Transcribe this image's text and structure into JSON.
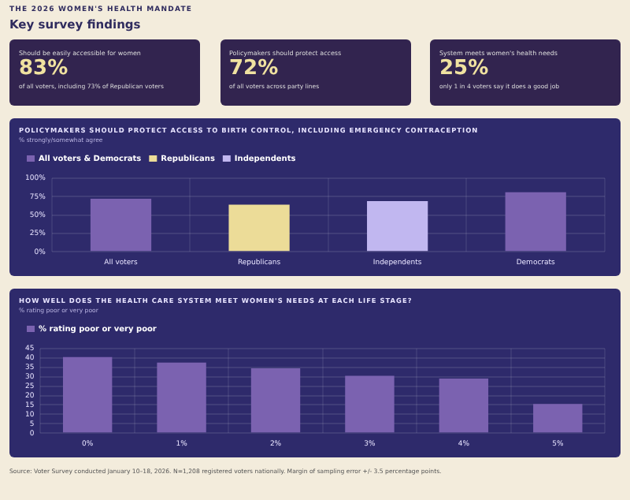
{
  "chart_data": [
    {
      "type": "other",
      "title": "Key survey findings",
      "subtitle": "THE 2026 WOMEN'S HEALTH MANDATE"
    },
    {
      "type": "other",
      "title": "Should be easily accessible for women",
      "annotations": [
        "83%",
        "of all voters, including 73% of Republican voters"
      ]
    },
    {
      "type": "other",
      "title": "Policymakers should protect access",
      "annotations": [
        "72%",
        "of all voters across party lines"
      ]
    },
    {
      "type": "other",
      "title": "System meets women's health needs",
      "annotations": [
        "25%",
        "only 1 in 4 voters say it does a good job"
      ]
    },
    {
      "type": "bar",
      "title": "POLICYMAKERS SHOULD PROTECT ACCESS TO BIRTH CONTROL, INCLUDING EMERGENCY CONTRACEPTION",
      "subtitle": "% strongly/somewhat agree",
      "categories": [
        "All voters",
        "Republicans",
        "Independents",
        "Democrats"
      ],
      "series": [
        {
          "name": "All voters & Democrats",
          "color": "#7b62b0",
          "values": [
            72,
            null,
            null,
            81
          ]
        },
        {
          "name": "Republicans",
          "color": "#ecdc98",
          "values": [
            null,
            64,
            null,
            null
          ]
        },
        {
          "name": "Independents",
          "color": "#c1b7f0",
          "values": [
            null,
            null,
            69,
            null
          ]
        }
      ],
      "ylim": [
        0,
        100
      ],
      "yticks": [
        {
          "value": 0,
          "label": "0%"
        },
        {
          "value": 25,
          "label": "25%"
        },
        {
          "value": 50,
          "label": "50%"
        },
        {
          "value": 75,
          "label": "75%"
        },
        {
          "value": 100,
          "label": "100%"
        }
      ],
      "grid": true,
      "legend": "top left"
    },
    {
      "type": "bar",
      "title": "HOW WELL DOES THE HEALTH CARE SYSTEM MEET WOMEN'S NEEDS AT EACH LIFE STAGE?",
      "subtitle": "% rating poor or very poor",
      "categories": [
        "0%",
        "1%",
        "2%",
        "3%",
        "4%",
        "5%"
      ],
      "series": [
        {
          "name": "% rating poor or very poor",
          "color": "#7b62b0",
          "values": [
            40.5,
            37.5,
            34.5,
            30.5,
            29,
            15.5
          ]
        }
      ],
      "ylim": [
        0,
        45
      ],
      "yticks": [
        0,
        5,
        10,
        15,
        20,
        25,
        30,
        35,
        40,
        45
      ],
      "grid": true,
      "legend": "top left",
      "annotations": [
        "Source: Voter Survey conducted January 10–18, 2026. N=1,208 registered voters nationally. Margin of sampling error +/- 3.5 percentage points."
      ]
    }
  ]
}
